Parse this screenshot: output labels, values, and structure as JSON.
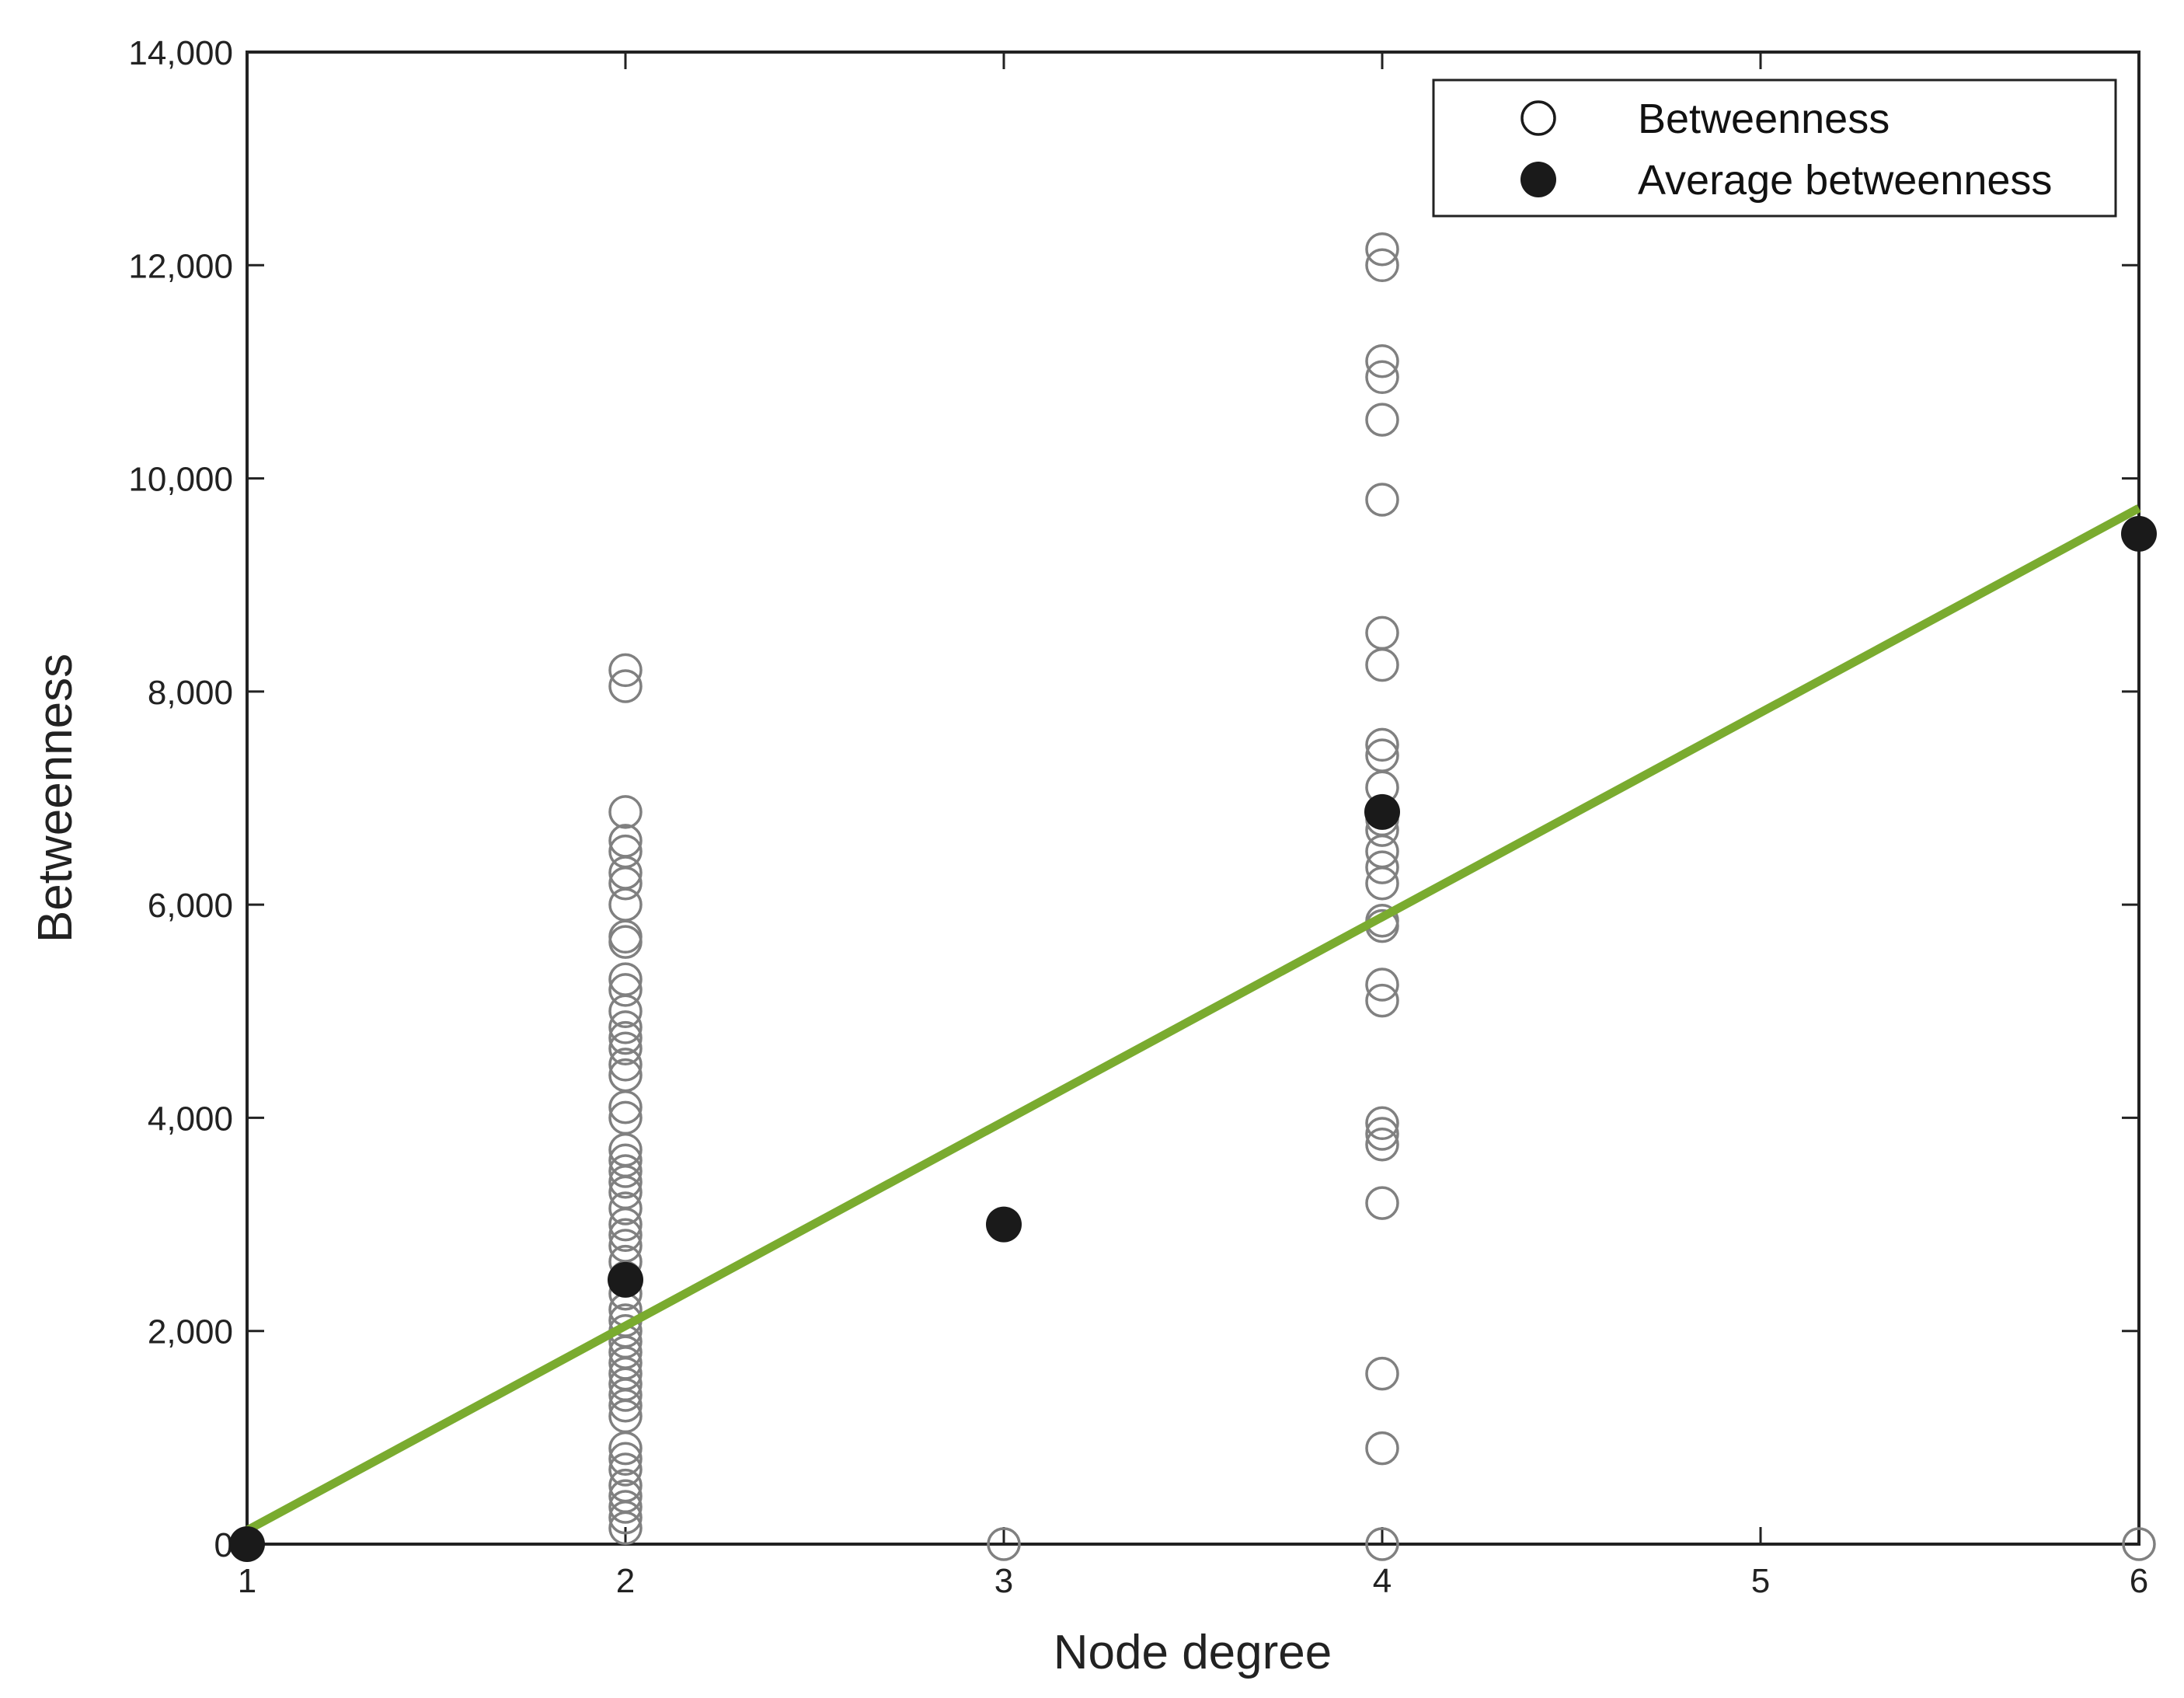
{
  "chart_data": {
    "type": "scatter",
    "title": "",
    "xlabel": "Node degree",
    "ylabel": "Betweenness",
    "xlim": [
      1,
      6
    ],
    "ylim": [
      0,
      14000
    ],
    "xticks": [
      1,
      2,
      3,
      4,
      5,
      6
    ],
    "xtick_labels": [
      "1",
      "2",
      "3",
      "4",
      "5",
      "6"
    ],
    "yticks": [
      0,
      2000,
      4000,
      6000,
      8000,
      10000,
      12000,
      14000
    ],
    "ytick_labels": [
      "0",
      "2,000",
      "4,000",
      "6,000",
      "8,000",
      "10,000",
      "12,000",
      "14,000"
    ],
    "grid": false,
    "legend_position": "top-right",
    "colors": {
      "betweenness": "#808080",
      "average": "#1a1a1a",
      "fit_line": "#7aab2f",
      "axis": "#222222"
    },
    "series": [
      {
        "name": "Betweenness",
        "marker": "open-circle",
        "points": [
          {
            "x": 1,
            "y": 0
          },
          {
            "x": 2,
            "y": 8200
          },
          {
            "x": 2,
            "y": 8050
          },
          {
            "x": 2,
            "y": 6870
          },
          {
            "x": 2,
            "y": 6600
          },
          {
            "x": 2,
            "y": 6500
          },
          {
            "x": 2,
            "y": 6300
          },
          {
            "x": 2,
            "y": 6200
          },
          {
            "x": 2,
            "y": 6000
          },
          {
            "x": 2,
            "y": 5700
          },
          {
            "x": 2,
            "y": 5650
          },
          {
            "x": 2,
            "y": 5300
          },
          {
            "x": 2,
            "y": 5200
          },
          {
            "x": 2,
            "y": 5000
          },
          {
            "x": 2,
            "y": 4850
          },
          {
            "x": 2,
            "y": 4750
          },
          {
            "x": 2,
            "y": 4650
          },
          {
            "x": 2,
            "y": 4500
          },
          {
            "x": 2,
            "y": 4400
          },
          {
            "x": 2,
            "y": 4100
          },
          {
            "x": 2,
            "y": 4000
          },
          {
            "x": 2,
            "y": 3700
          },
          {
            "x": 2,
            "y": 3600
          },
          {
            "x": 2,
            "y": 3500
          },
          {
            "x": 2,
            "y": 3400
          },
          {
            "x": 2,
            "y": 3300
          },
          {
            "x": 2,
            "y": 3150
          },
          {
            "x": 2,
            "y": 3000
          },
          {
            "x": 2,
            "y": 2900
          },
          {
            "x": 2,
            "y": 2800
          },
          {
            "x": 2,
            "y": 2650
          },
          {
            "x": 2,
            "y": 2500
          },
          {
            "x": 2,
            "y": 2350
          },
          {
            "x": 2,
            "y": 2200
          },
          {
            "x": 2,
            "y": 2100
          },
          {
            "x": 2,
            "y": 2000
          },
          {
            "x": 2,
            "y": 1900
          },
          {
            "x": 2,
            "y": 1800
          },
          {
            "x": 2,
            "y": 1700
          },
          {
            "x": 2,
            "y": 1600
          },
          {
            "x": 2,
            "y": 1500
          },
          {
            "x": 2,
            "y": 1400
          },
          {
            "x": 2,
            "y": 1300
          },
          {
            "x": 2,
            "y": 1200
          },
          {
            "x": 2,
            "y": 900
          },
          {
            "x": 2,
            "y": 800
          },
          {
            "x": 2,
            "y": 700
          },
          {
            "x": 2,
            "y": 550
          },
          {
            "x": 2,
            "y": 450
          },
          {
            "x": 2,
            "y": 350
          },
          {
            "x": 2,
            "y": 250
          },
          {
            "x": 2,
            "y": 150
          },
          {
            "x": 3,
            "y": 0
          },
          {
            "x": 4,
            "y": 12150
          },
          {
            "x": 4,
            "y": 12000
          },
          {
            "x": 4,
            "y": 11100
          },
          {
            "x": 4,
            "y": 10950
          },
          {
            "x": 4,
            "y": 10550
          },
          {
            "x": 4,
            "y": 9800
          },
          {
            "x": 4,
            "y": 8550
          },
          {
            "x": 4,
            "y": 8250
          },
          {
            "x": 4,
            "y": 7500
          },
          {
            "x": 4,
            "y": 7400
          },
          {
            "x": 4,
            "y": 7100
          },
          {
            "x": 4,
            "y": 6800
          },
          {
            "x": 4,
            "y": 6700
          },
          {
            "x": 4,
            "y": 6500
          },
          {
            "x": 4,
            "y": 6350
          },
          {
            "x": 4,
            "y": 6200
          },
          {
            "x": 4,
            "y": 5850
          },
          {
            "x": 4,
            "y": 5800
          },
          {
            "x": 4,
            "y": 5250
          },
          {
            "x": 4,
            "y": 5100
          },
          {
            "x": 4,
            "y": 3950
          },
          {
            "x": 4,
            "y": 3850
          },
          {
            "x": 4,
            "y": 3750
          },
          {
            "x": 4,
            "y": 3200
          },
          {
            "x": 4,
            "y": 1600
          },
          {
            "x": 4,
            "y": 900
          },
          {
            "x": 4,
            "y": 0
          },
          {
            "x": 6,
            "y": 0
          }
        ]
      },
      {
        "name": "Average betweenness",
        "marker": "filled-circle",
        "points": [
          {
            "x": 1,
            "y": 0
          },
          {
            "x": 2,
            "y": 2480
          },
          {
            "x": 3,
            "y": 3000
          },
          {
            "x": 4,
            "y": 6870
          },
          {
            "x": 6,
            "y": 9480
          }
        ]
      }
    ],
    "fit_line": {
      "type": "linear",
      "points": [
        {
          "x": 1,
          "y": 130
        },
        {
          "x": 6,
          "y": 9720
        }
      ]
    }
  }
}
